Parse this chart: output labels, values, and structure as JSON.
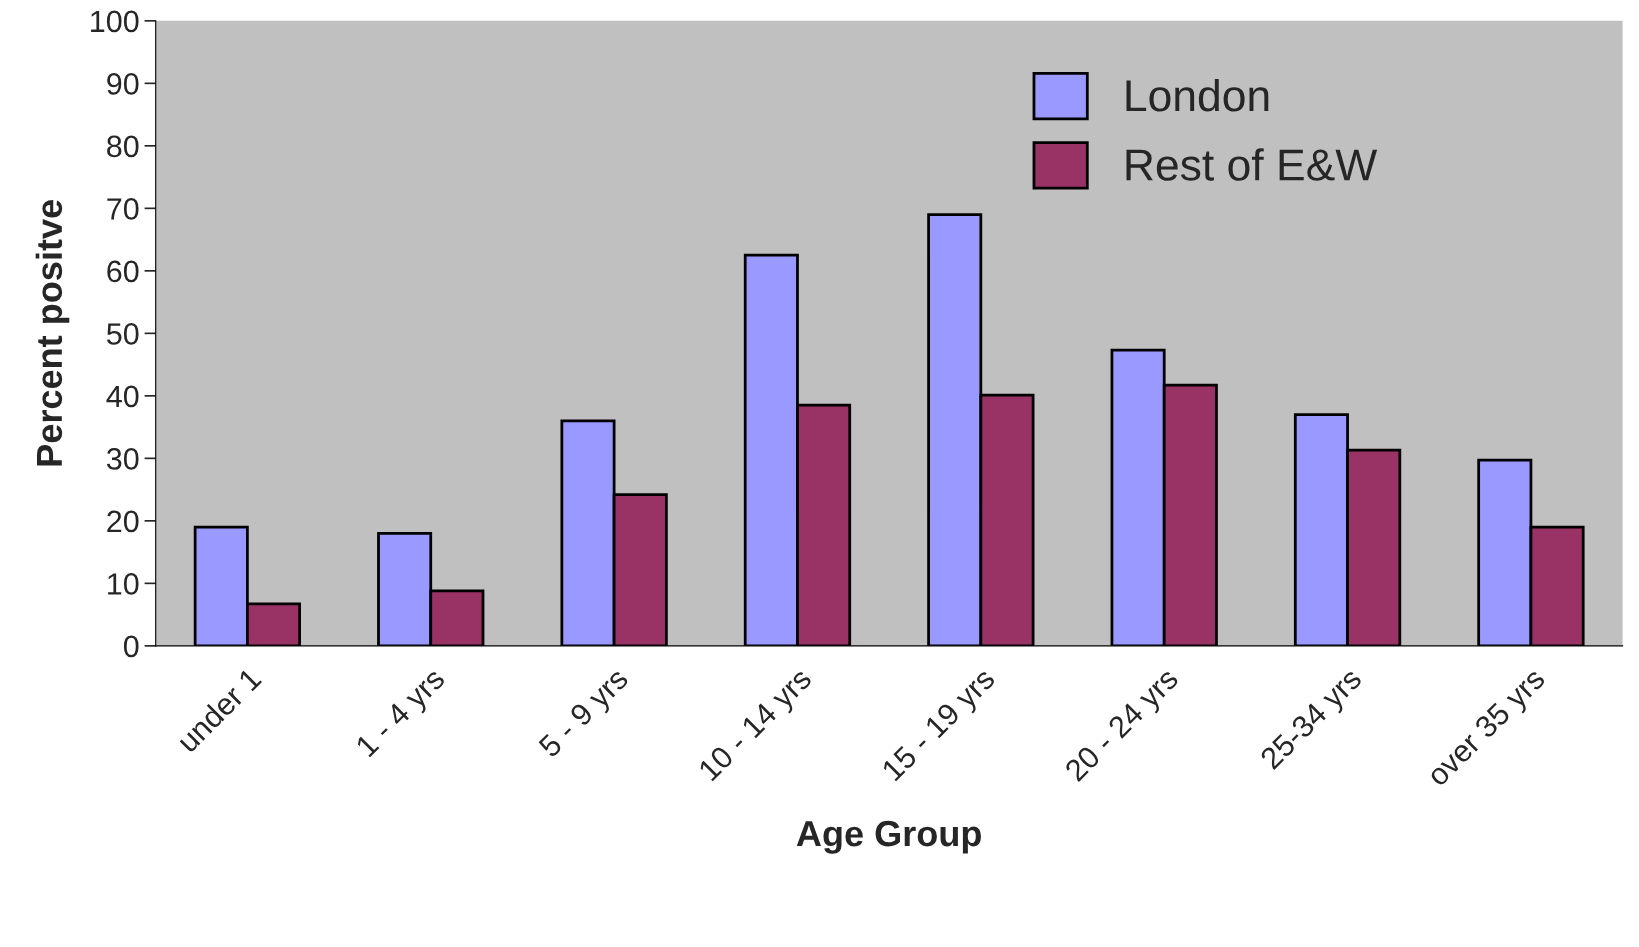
{
  "chart_data": {
    "type": "bar",
    "xlabel": "Age Group",
    "ylabel": "Percent positve",
    "categories": [
      "under 1",
      "1 - 4 yrs",
      "5 - 9 yrs",
      "10 - 14 yrs",
      "15 - 19 yrs",
      "20 - 24 yrs",
      "25-34 yrs",
      "over 35 yrs"
    ],
    "series": [
      {
        "name": "London",
        "color": "#9999ff",
        "values": [
          19,
          18,
          36,
          62.5,
          69,
          47.3,
          37,
          29.7
        ]
      },
      {
        "name": "Rest of E&W",
        "color": "#993366",
        "values": [
          6.7,
          8.8,
          24.2,
          38.5,
          40.1,
          41.7,
          31.3,
          19
        ]
      }
    ],
    "ylim": [
      0,
      100
    ],
    "yticks": [
      0,
      10,
      20,
      30,
      40,
      50,
      60,
      70,
      80,
      90,
      100
    ],
    "grid": false,
    "legend": "top right"
  }
}
